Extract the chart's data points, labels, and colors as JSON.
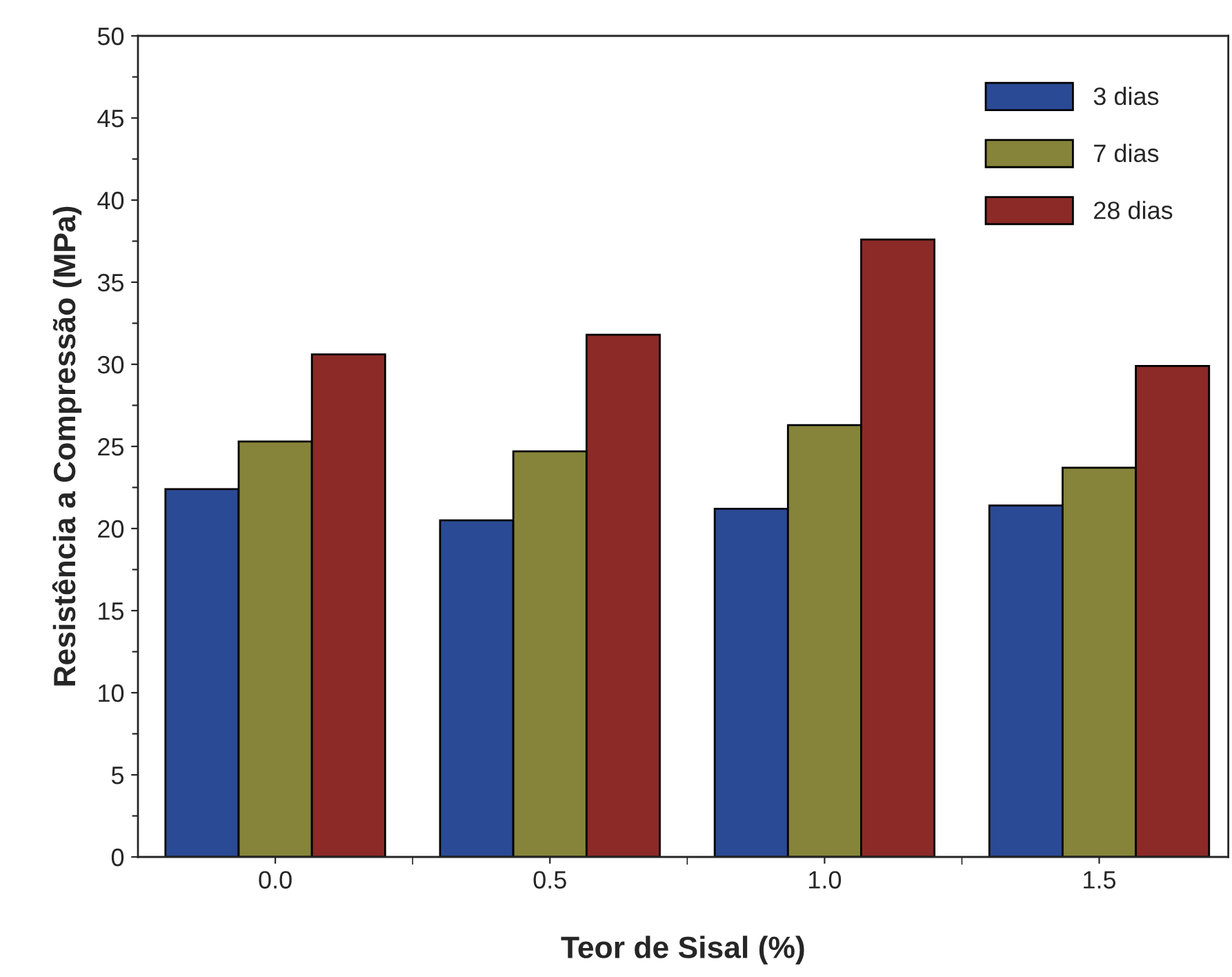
{
  "chart_data": {
    "type": "bar",
    "xlabel": "Teor de Sisal (%)",
    "ylabel": "Resistência a Compressão (MPa)",
    "categories": [
      "0.0",
      "0.5",
      "1.0",
      "1.5"
    ],
    "series": [
      {
        "name": "3 dias",
        "color": "#2b4a95",
        "values": [
          22.4,
          20.5,
          21.2,
          21.4
        ]
      },
      {
        "name": "7 dias",
        "color": "#86843a",
        "values": [
          25.3,
          24.7,
          26.3,
          23.7
        ]
      },
      {
        "name": "28 dias",
        "color": "#8b2a26",
        "values": [
          30.6,
          31.8,
          37.6,
          29.9
        ]
      }
    ],
    "ylim": [
      0,
      50
    ],
    "yticks": [
      0,
      {
        "value": 2.5,
        "label": null
      },
      5,
      {
        "value": 7.5,
        "label": null
      },
      10,
      {
        "value": 12.5,
        "label": null
      },
      15,
      {
        "value": 17.5,
        "label": null
      },
      20,
      {
        "value": 22.5,
        "label": null
      },
      25,
      {
        "value": 27.5,
        "label": null
      },
      30,
      {
        "value": 32.5,
        "label": null
      },
      35,
      {
        "value": 37.5,
        "label": null
      },
      40,
      {
        "value": 42.5,
        "label": null
      },
      45,
      {
        "value": 47.5,
        "label": null
      },
      50
    ],
    "grid": false,
    "legend": "top right"
  }
}
